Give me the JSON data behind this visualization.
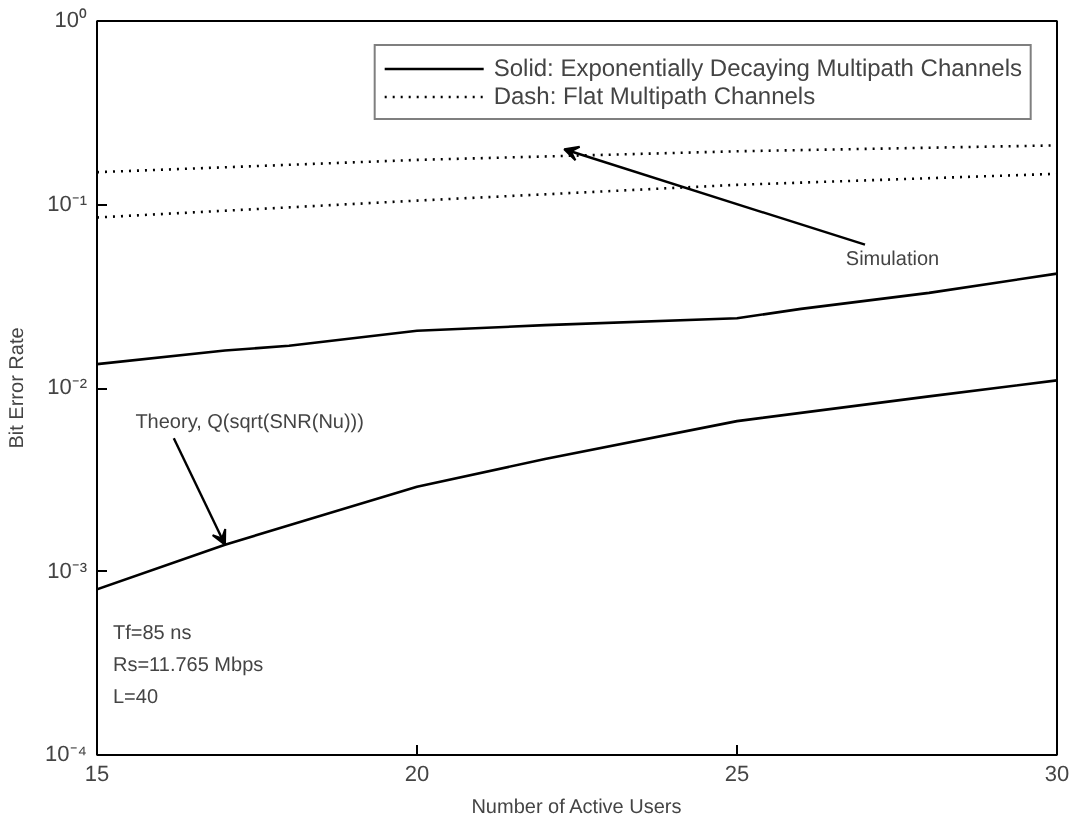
{
  "chart_data": {
    "type": "line",
    "xlabel": "Number of Active Users",
    "ylabel": "Bit Error Rate",
    "log": "y",
    "grid": false,
    "legend": "top right",
    "marker": "none",
    "xlim": [
      15,
      30
    ],
    "xticks": [
      15,
      20,
      25,
      30
    ],
    "ylim": [
      0.0001,
      1
    ],
    "yticks": [
      {
        "value": 0.0001,
        "label": "10⁻⁴"
      },
      {
        "value": 0.001,
        "label": "10⁻³"
      },
      {
        "value": 0.01,
        "label": "10⁻²"
      },
      {
        "value": 0.1,
        "label": "10⁻¹"
      },
      {
        "value": 1,
        "label": "10⁰"
      }
    ],
    "series": [
      {
        "name": "Solid: Exponentially Decaying Multipath Channels",
        "color": "#000000",
        "line_style": "solid",
        "x": [
          15,
          17,
          18,
          20,
          22,
          25,
          26,
          28,
          30
        ],
        "values": [
          0.0135,
          0.016,
          0.017,
          0.0205,
          0.022,
          0.024,
          0.027,
          0.033,
          0.042
        ]
      },
      {
        "color": "#000000",
        "line_style": "solid",
        "x": [
          15,
          17,
          20,
          22,
          25,
          28,
          30
        ],
        "values": [
          0.0008,
          0.0014,
          0.0029,
          0.0041,
          0.0066,
          0.009,
          0.011
        ]
      },
      {
        "name": "Dash: Flat Multipath Channels",
        "color": "#000000",
        "line_style": "dotted",
        "x": [
          15,
          20,
          25,
          30
        ],
        "values": [
          0.15,
          0.175,
          0.195,
          0.21
        ]
      },
      {
        "color": "#000000",
        "line_style": "dotted",
        "x": [
          15,
          20,
          25,
          30
        ],
        "values": [
          0.085,
          0.105,
          0.128,
          0.147
        ]
      }
    ],
    "annotations": [
      {
        "text": "Simulation",
        "x": 22.3,
        "y": 0.2
      },
      {
        "text": "Theory, Q(sqrt(SNR(Nu)))",
        "x": 17,
        "y": 0.0014
      },
      "Tf=85 ns",
      "Rs=11.765 Mbps",
      "L=40"
    ]
  }
}
